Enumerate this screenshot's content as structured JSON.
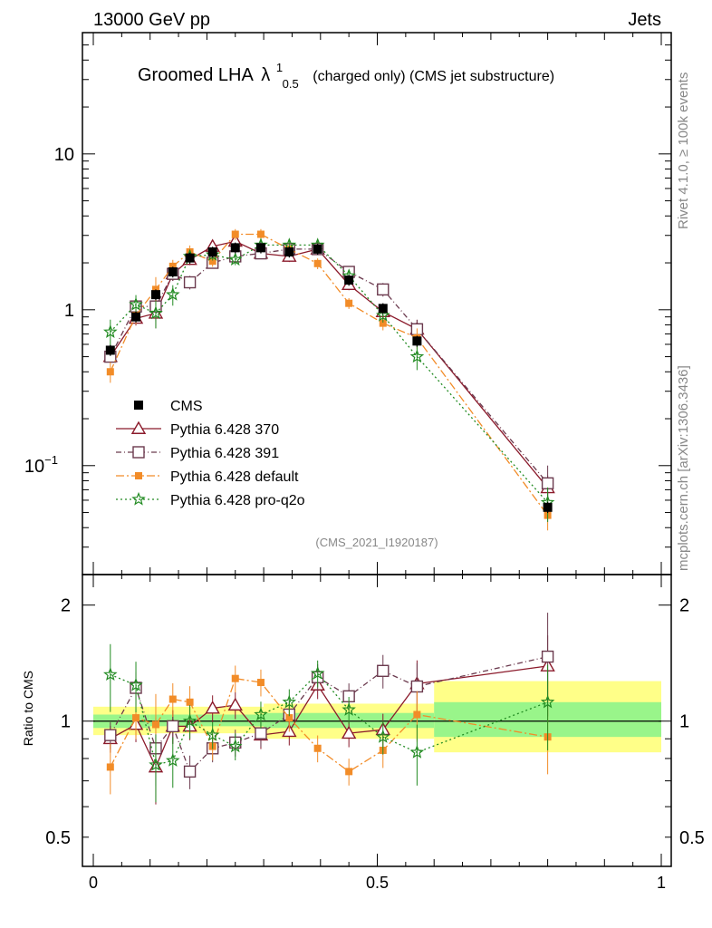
{
  "header": {
    "left": "13000 GeV pp",
    "right": "Jets",
    "side_top": "Rivet 4.1.0, ≥ 100k events",
    "side_bottom": "mcplots.cern.ch [arXiv:1306.3436]",
    "watermark": "(CMS_2021_I1920187)"
  },
  "chart_data": {
    "type": "line",
    "title": {
      "main": "Groomed LHA",
      "symbol": "λ",
      "sup": "1",
      "sub": "0.5",
      "suffix": "(charged only) (CMS jet substructure)"
    },
    "x": [
      0.03,
      0.075,
      0.11,
      0.14,
      0.17,
      0.21,
      0.25,
      0.295,
      0.345,
      0.395,
      0.45,
      0.51,
      0.57,
      0.8
    ],
    "xlim": [
      0,
      1
    ],
    "xticks": [
      {
        "v": 0,
        "label": "0"
      },
      {
        "v": 0.5,
        "label": "0.5"
      },
      {
        "v": 1,
        "label": "1"
      }
    ],
    "main": {
      "scale": "log",
      "ylim": [
        0.02,
        60
      ],
      "yticks": [
        {
          "v": 0.1,
          "base": "10",
          "exp": "−1"
        },
        {
          "v": 1,
          "base": "1",
          "exp": ""
        },
        {
          "v": 10,
          "base": "10",
          "exp": ""
        }
      ]
    },
    "ratio": {
      "ylabel": "Ratio to CMS",
      "scale": "log",
      "ylim": [
        0.42,
        2.4
      ],
      "yticks": [
        {
          "v": 0.5,
          "label": "0.5"
        },
        {
          "v": 1,
          "label": "1"
        },
        {
          "v": 2,
          "label": "2"
        }
      ]
    },
    "data": {
      "name": "CMS",
      "values": [
        0.55,
        0.9,
        1.25,
        1.75,
        2.15,
        2.35,
        2.5,
        2.5,
        2.35,
        2.45,
        1.55,
        1.02,
        0.63,
        0.054
      ]
    },
    "bands": [
      {
        "x0": 0.0,
        "x1": 0.1,
        "green": [
          0.96,
          1.04
        ],
        "yellow": [
          0.92,
          1.09
        ]
      },
      {
        "x0": 0.1,
        "x1": 0.3,
        "green": [
          0.97,
          1.04
        ],
        "yellow": [
          0.93,
          1.09
        ]
      },
      {
        "x0": 0.3,
        "x1": 0.6,
        "green": [
          0.96,
          1.05
        ],
        "yellow": [
          0.9,
          1.11
        ]
      },
      {
        "x0": 0.6,
        "x1": 1.0,
        "green": [
          0.91,
          1.12
        ],
        "yellow": [
          0.83,
          1.27
        ]
      }
    ],
    "series": [
      {
        "name": "Pythia 6.428 370",
        "color": "#8b1a2b",
        "marker": "triangle",
        "dash": "",
        "values": [
          0.5,
          0.88,
          0.95,
          1.7,
          2.1,
          2.55,
          2.75,
          2.3,
          2.2,
          2.45,
          1.45,
          0.97,
          0.75,
          0.072
        ],
        "ratio": [
          0.9,
          0.98,
          0.76,
          0.97,
          0.97,
          1.08,
          1.1,
          0.92,
          0.94,
          1.24,
          0.93,
          0.95,
          1.25,
          1.39
        ],
        "ratio_err": [
          0.08,
          0.1,
          0.2,
          0.1,
          0.08,
          0.08,
          0.08,
          0.08,
          0.08,
          0.08,
          0.08,
          0.1,
          0.15,
          0.2
        ]
      },
      {
        "name": "Pythia 6.428 391",
        "color": "#6b3a4e",
        "marker": "square",
        "dash": "6,3,1,3",
        "values": [
          0.5,
          1.05,
          1.05,
          1.7,
          1.5,
          2.0,
          2.2,
          2.3,
          2.45,
          2.45,
          1.75,
          1.35,
          0.75,
          0.077
        ],
        "ratio": [
          0.92,
          1.22,
          0.85,
          0.97,
          0.74,
          0.85,
          0.88,
          0.93,
          1.04,
          1.3,
          1.16,
          1.35,
          1.23,
          1.47
        ],
        "ratio_err": [
          0.08,
          0.1,
          0.2,
          0.1,
          0.1,
          0.08,
          0.08,
          0.08,
          0.08,
          0.08,
          0.08,
          0.1,
          0.15,
          0.3
        ]
      },
      {
        "name": "Pythia 6.428 default",
        "color": "#f28c28",
        "marker": "smallsquare",
        "dash": "9,3,2,3",
        "values": [
          0.4,
          0.92,
          1.35,
          1.9,
          2.35,
          2.05,
          3.05,
          3.05,
          2.45,
          1.98,
          1.1,
          0.82,
          0.66,
          0.048
        ],
        "ratio": [
          0.76,
          1.02,
          0.98,
          1.14,
          1.12,
          0.86,
          1.29,
          1.26,
          1.02,
          0.85,
          0.74,
          0.84,
          1.04,
          0.91
        ],
        "ratio_err": [
          0.15,
          0.12,
          0.2,
          0.1,
          0.1,
          0.08,
          0.08,
          0.08,
          0.08,
          0.08,
          0.08,
          0.1,
          0.15,
          0.2
        ]
      },
      {
        "name": "Pythia 6.428 pro-q2o",
        "color": "#228b22",
        "marker": "star",
        "dash": "2,3",
        "values": [
          0.72,
          1.08,
          0.95,
          1.25,
          2.2,
          2.25,
          2.1,
          2.6,
          2.6,
          2.6,
          1.65,
          0.92,
          0.5,
          0.058
        ],
        "ratio": [
          1.32,
          1.24,
          0.77,
          0.79,
          1.0,
          0.92,
          0.86,
          1.04,
          1.12,
          1.33,
          1.07,
          0.91,
          0.83,
          1.12
        ],
        "ratio_err": [
          0.2,
          0.15,
          0.2,
          0.15,
          0.1,
          0.08,
          0.08,
          0.08,
          0.08,
          0.08,
          0.08,
          0.1,
          0.18,
          0.25
        ]
      }
    ]
  }
}
